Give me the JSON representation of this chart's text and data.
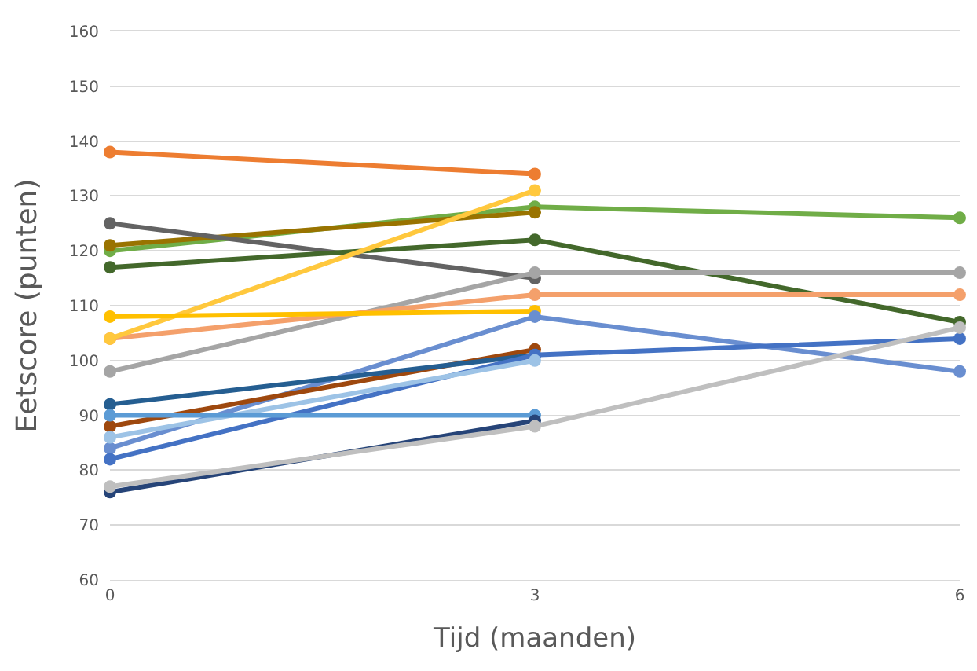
{
  "chart_data": {
    "type": "line",
    "xlabel": "Tijd (maanden)",
    "ylabel": "Eetscore (punten)",
    "x": [
      0,
      3,
      6
    ],
    "xlim": [
      0,
      6
    ],
    "xticks": [
      0,
      3,
      6
    ],
    "ylim": [
      60,
      160
    ],
    "yticks": [
      60,
      70,
      80,
      90,
      100,
      110,
      120,
      130,
      140,
      150,
      160
    ],
    "grid": "y",
    "marker": "circle",
    "line_style": "solid",
    "series": [
      {
        "color": "#ed7d31",
        "values": [
          138,
          134,
          null
        ]
      },
      {
        "color": "#70ad47",
        "values": [
          120,
          128,
          126
        ]
      },
      {
        "color": "#997300",
        "values": [
          121,
          127,
          null
        ]
      },
      {
        "color": "#636363",
        "values": [
          125,
          115,
          null
        ]
      },
      {
        "color": "#43682b",
        "values": [
          117,
          122,
          107
        ]
      },
      {
        "color": "#a5a5a5",
        "values": [
          98,
          116,
          116
        ]
      },
      {
        "color": "#f4a06b",
        "values": [
          104,
          112,
          112
        ]
      },
      {
        "color": "#ffc83d",
        "values": [
          104,
          131,
          null
        ]
      },
      {
        "color": "#ffc000",
        "values": [
          108,
          109,
          null
        ]
      },
      {
        "color": "#698ed0",
        "values": [
          84,
          108,
          98
        ]
      },
      {
        "color": "#9e480e",
        "values": [
          88,
          102,
          null
        ]
      },
      {
        "color": "#255e91",
        "values": [
          92,
          101,
          null
        ]
      },
      {
        "color": "#4472c4",
        "values": [
          82,
          101,
          104
        ]
      },
      {
        "color": "#9dc3e6",
        "values": [
          86,
          100,
          null
        ]
      },
      {
        "color": "#5b9bd5",
        "values": [
          90,
          90,
          null
        ]
      },
      {
        "color": "#264478",
        "values": [
          76,
          89,
          null
        ]
      },
      {
        "color": "#bfbfbf",
        "values": [
          77,
          88,
          106
        ]
      }
    ]
  }
}
